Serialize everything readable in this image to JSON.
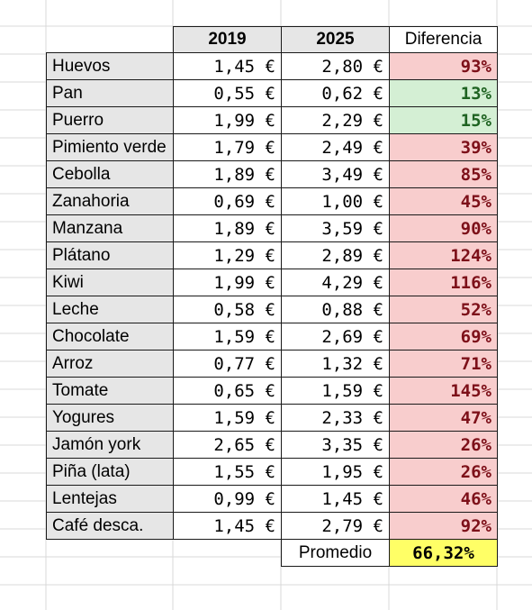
{
  "headers": {
    "col1": "2019",
    "col2": "2025",
    "col3": "Diferencia"
  },
  "colors": {
    "increase_high_bg": "#f8cdcd",
    "increase_high_text": "#7d1019",
    "increase_low_bg": "#d4efd4",
    "increase_low_text": "#1f6322",
    "average_bg": "#ffff66"
  },
  "rows": [
    {
      "name": "Huevos",
      "y2019": "1,45 €",
      "y2025": "2,80 €",
      "diff": "93%",
      "tone": "red"
    },
    {
      "name": "Pan",
      "y2019": "0,55 €",
      "y2025": "0,62 €",
      "diff": "13%",
      "tone": "green"
    },
    {
      "name": "Puerro",
      "y2019": "1,99 €",
      "y2025": "2,29 €",
      "diff": "15%",
      "tone": "green"
    },
    {
      "name": "Pimiento verde",
      "y2019": "1,79 €",
      "y2025": "2,49 €",
      "diff": "39%",
      "tone": "red"
    },
    {
      "name": "Cebolla",
      "y2019": "1,89 €",
      "y2025": "3,49 €",
      "diff": "85%",
      "tone": "red"
    },
    {
      "name": "Zanahoria",
      "y2019": "0,69 €",
      "y2025": "1,00 €",
      "diff": "45%",
      "tone": "red"
    },
    {
      "name": "Manzana",
      "y2019": "1,89 €",
      "y2025": "3,59 €",
      "diff": "90%",
      "tone": "red"
    },
    {
      "name": "Plátano",
      "y2019": "1,29 €",
      "y2025": "2,89 €",
      "diff": "124%",
      "tone": "red"
    },
    {
      "name": "Kiwi",
      "y2019": "1,99 €",
      "y2025": "4,29 €",
      "diff": "116%",
      "tone": "red"
    },
    {
      "name": "Leche",
      "y2019": "0,58 €",
      "y2025": "0,88 €",
      "diff": "52%",
      "tone": "red"
    },
    {
      "name": "Chocolate",
      "y2019": "1,59 €",
      "y2025": "2,69 €",
      "diff": "69%",
      "tone": "red"
    },
    {
      "name": "Arroz",
      "y2019": "0,77 €",
      "y2025": "1,32 €",
      "diff": "71%",
      "tone": "red"
    },
    {
      "name": "Tomate",
      "y2019": "0,65 €",
      "y2025": "1,59 €",
      "diff": "145%",
      "tone": "red"
    },
    {
      "name": "Yogures",
      "y2019": "1,59 €",
      "y2025": "2,33 €",
      "diff": "47%",
      "tone": "red"
    },
    {
      "name": "Jamón york",
      "y2019": "2,65 €",
      "y2025": "3,35 €",
      "diff": "26%",
      "tone": "red"
    },
    {
      "name": "Piña (lata)",
      "y2019": "1,55 €",
      "y2025": "1,95 €",
      "diff": "26%",
      "tone": "red"
    },
    {
      "name": "Lentejas",
      "y2019": "0,99 €",
      "y2025": "1,45 €",
      "diff": "46%",
      "tone": "red"
    },
    {
      "name": "Café desca.",
      "y2019": "1,45 €",
      "y2025": "2,79 €",
      "diff": "92%",
      "tone": "red"
    }
  ],
  "average": {
    "label": "Promedio",
    "value": "66,32%"
  }
}
